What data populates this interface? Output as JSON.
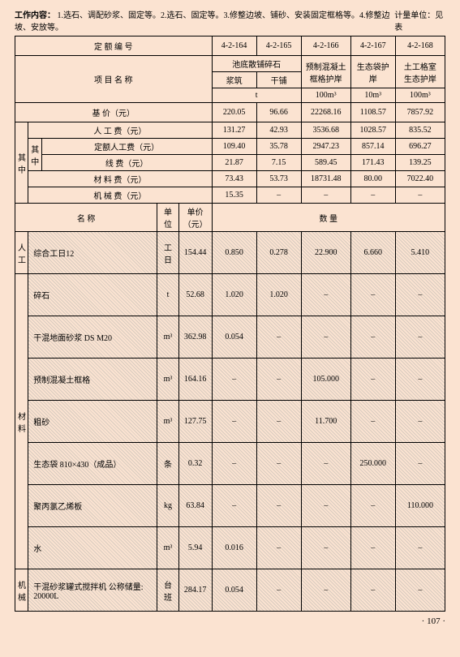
{
  "header": {
    "work": "工作内容：",
    "desc": "1.选石、调配砂浆、固定等。2.选石、固定等。3.修整边坡、铺砂、安装固定框格等。4.修整边坡、安放等。",
    "unit": "计量单位：见表"
  },
  "labels": {
    "code": "定 额 编 号",
    "project": "项 目 名 称",
    "base": "基    价（元）",
    "rgf": "人 工 费（元）",
    "drgf": "定额人工费（元）",
    "xf": "线    费（元）",
    "clf": "材 料 费（元）",
    "jxf": "机 械 费（元）",
    "qz": "其中",
    "qz2": "其中",
    "name": "名    称",
    "dw": "单位",
    "dj": "单价（元）",
    "sl": "数    量",
    "rg": "人工",
    "cl": "材料",
    "jx": "机械",
    "pond": "池底散铺碎石",
    "jz": "浆筑",
    "gp": "干铺",
    "t": "t",
    "c166": "预制混凝土\n框格护岸",
    "c167": "生态袋护岸",
    "c168": "土工格室\n生态护岸",
    "u100": "100m³",
    "u10": "10m³"
  },
  "codes": [
    "4-2-164",
    "4-2-165",
    "4-2-166",
    "4-2-167",
    "4-2-168"
  ],
  "base": [
    "220.05",
    "96.66",
    "22268.16",
    "1108.57",
    "7857.92"
  ],
  "rows": {
    "rgf": [
      "131.27",
      "42.93",
      "3536.68",
      "1028.57",
      "835.52"
    ],
    "drgf": [
      "109.40",
      "35.78",
      "2947.23",
      "857.14",
      "696.27"
    ],
    "xf": [
      "21.87",
      "7.15",
      "589.45",
      "171.43",
      "139.25"
    ],
    "clf": [
      "73.43",
      "53.73",
      "18731.48",
      "80.00",
      "7022.40"
    ],
    "jxf": [
      "15.35",
      "–",
      "–",
      "–",
      "–"
    ]
  },
  "items": [
    {
      "n": "综合工日12",
      "u": "工日",
      "p": "154.44",
      "v": [
        "0.850",
        "0.278",
        "22.900",
        "6.660",
        "5.410"
      ]
    },
    {
      "n": "碎石",
      "u": "t",
      "p": "52.68",
      "v": [
        "1.020",
        "1.020",
        "–",
        "–",
        "–"
      ]
    },
    {
      "n": "干混地面砂浆 DS M20",
      "u": "m³",
      "p": "362.98",
      "v": [
        "0.054",
        "–",
        "–",
        "–",
        "–"
      ]
    },
    {
      "n": "预制混凝土框格",
      "u": "m³",
      "p": "164.16",
      "v": [
        "–",
        "–",
        "105.000",
        "–",
        "–"
      ]
    },
    {
      "n": "粗砂",
      "u": "m³",
      "p": "127.75",
      "v": [
        "–",
        "–",
        "11.700",
        "–",
        "–"
      ]
    },
    {
      "n": "生态袋 810×430（成品）",
      "u": "条",
      "p": "0.32",
      "v": [
        "–",
        "–",
        "–",
        "250.000",
        "–"
      ]
    },
    {
      "n": "聚丙氯乙烯板",
      "u": "kg",
      "p": "63.84",
      "v": [
        "–",
        "–",
        "–",
        "–",
        "110.000"
      ]
    },
    {
      "n": "水",
      "u": "m³",
      "p": "5.94",
      "v": [
        "0.016",
        "–",
        "–",
        "–",
        "–"
      ]
    },
    {
      "n": "干混砂浆罐式搅拌机 公称储量: 20000L",
      "u": "台班",
      "p": "284.17",
      "v": [
        "0.054",
        "–",
        "–",
        "–",
        "–"
      ]
    }
  ],
  "page": "· 107 ·"
}
